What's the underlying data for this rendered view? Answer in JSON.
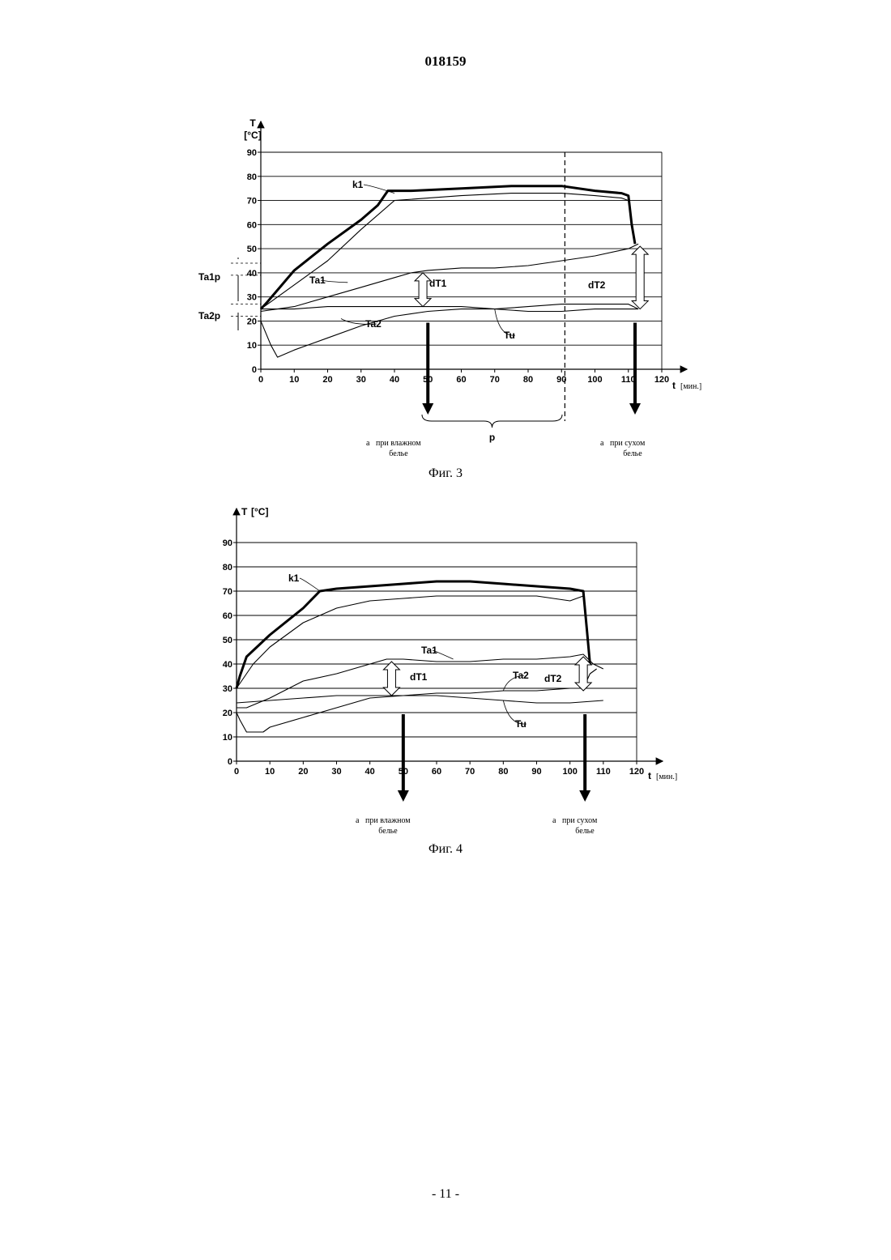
{
  "page": {
    "number": "018159",
    "footer": "- 11 -"
  },
  "chart_data": [
    {
      "type": "line",
      "caption": "Фиг. 3",
      "ylabel_symbol": "T",
      "ylabel_unit": "[°C]",
      "xlabel_symbol": "t",
      "xlabel_unit": "[мин.]",
      "xlim": [
        0,
        120
      ],
      "ylim": [
        0,
        90
      ],
      "x_ticks": [
        0,
        10,
        20,
        30,
        40,
        50,
        60,
        70,
        80,
        90,
        100,
        110,
        120
      ],
      "y_ticks": [
        0,
        10,
        20,
        30,
        40,
        50,
        60,
        70,
        80,
        90
      ],
      "grid": "horizontal",
      "series": [
        {
          "name": "k1",
          "style": "thick",
          "x": [
            0,
            2,
            10,
            20,
            30,
            35,
            38,
            45,
            60,
            75,
            90,
            100,
            108,
            110,
            111,
            112
          ],
          "y": [
            25,
            28,
            41,
            52,
            62,
            68,
            74,
            74,
            75,
            76,
            76,
            74,
            73,
            72,
            60,
            52
          ]
        },
        {
          "name": "",
          "style": "thin",
          "x": [
            0,
            10,
            20,
            30,
            40,
            50,
            60,
            75,
            90,
            100,
            108,
            110,
            111
          ],
          "y": [
            25,
            35,
            45,
            58,
            70,
            71,
            72,
            73,
            73,
            72,
            71,
            70,
            60
          ]
        },
        {
          "name": "Ta1",
          "style": "thin",
          "x": [
            0,
            10,
            20,
            30,
            40,
            45,
            50,
            60,
            70,
            80,
            90,
            100,
            110,
            113
          ],
          "y": [
            24,
            26,
            30,
            34,
            38,
            40,
            41,
            42,
            42,
            43,
            45,
            47,
            50,
            52
          ]
        },
        {
          "name": "Ta2",
          "style": "thin",
          "x": [
            0,
            3,
            5,
            10,
            20,
            30,
            40,
            50,
            60,
            70,
            80,
            90,
            100,
            110,
            113
          ],
          "y": [
            20,
            10,
            5,
            8,
            13,
            18,
            22,
            24,
            25,
            25,
            26,
            27,
            27,
            27,
            25
          ]
        },
        {
          "name": "Tu",
          "style": "thin",
          "x": [
            0,
            10,
            20,
            30,
            40,
            50,
            60,
            70,
            80,
            90,
            100,
            110,
            113
          ],
          "y": [
            25,
            25,
            26,
            26,
            26,
            26,
            26,
            25,
            24,
            24,
            25,
            25,
            25
          ]
        }
      ],
      "vertical_line": {
        "x": 91,
        "style": "dashed"
      },
      "arrows_down": [
        {
          "x": 50
        },
        {
          "x": 112
        }
      ],
      "double_arrows": [
        {
          "label": "dT1",
          "x": 48.5,
          "y1": 26,
          "y2": 40
        },
        {
          "label": "dT2",
          "x": 113.5,
          "y1": 25,
          "y2": 51
        }
      ],
      "left_markers": [
        "Ta1p",
        "Ta2p"
      ],
      "brace_label": "p",
      "annotations": [
        {
          "id": "wet",
          "prefix": "a",
          "line1": "при влажном",
          "line2": "белье"
        },
        {
          "id": "dry",
          "prefix": "a",
          "line1": "при сухом",
          "line2": "белье"
        }
      ]
    },
    {
      "type": "line",
      "caption": "Фиг. 4",
      "ylabel_symbol": "T",
      "ylabel_unit": "[°C]",
      "xlabel_symbol": "t",
      "xlabel_unit": "[мин.]",
      "xlim": [
        0,
        120
      ],
      "ylim": [
        0,
        90
      ],
      "x_ticks": [
        0,
        10,
        20,
        30,
        40,
        50,
        60,
        70,
        80,
        90,
        100,
        110,
        120
      ],
      "y_ticks": [
        0,
        10,
        20,
        30,
        40,
        50,
        60,
        70,
        80,
        90
      ],
      "grid": "horizontal",
      "series": [
        {
          "name": "k1",
          "style": "thick",
          "x": [
            0,
            1,
            3,
            10,
            20,
            25,
            30,
            40,
            50,
            60,
            70,
            80,
            90,
            100,
            104,
            105,
            106
          ],
          "y": [
            30,
            35,
            43,
            52,
            63,
            70,
            71,
            72,
            73,
            74,
            74,
            73,
            72,
            71,
            70,
            55,
            40
          ]
        },
        {
          "name": "",
          "style": "thin",
          "x": [
            0,
            5,
            10,
            20,
            30,
            40,
            50,
            60,
            70,
            80,
            90,
            100,
            104,
            105
          ],
          "y": [
            30,
            40,
            47,
            57,
            63,
            66,
            67,
            68,
            68,
            68,
            68,
            66,
            68,
            55
          ]
        },
        {
          "name": "Ta1",
          "style": "thin",
          "x": [
            0,
            3,
            10,
            20,
            30,
            40,
            45,
            50,
            60,
            70,
            80,
            90,
            100,
            104,
            107,
            110
          ],
          "y": [
            22,
            22,
            26,
            33,
            36,
            40,
            42,
            42,
            41,
            41,
            42,
            42,
            43,
            44,
            40,
            38
          ]
        },
        {
          "name": "Ta2",
          "style": "thin",
          "x": [
            0,
            1,
            3,
            8,
            10,
            20,
            30,
            40,
            50,
            60,
            70,
            80,
            90,
            100,
            104,
            106,
            108
          ],
          "y": [
            20,
            17,
            12,
            12,
            14,
            18,
            22,
            26,
            27,
            28,
            28,
            29,
            29,
            30,
            30,
            36,
            38
          ]
        },
        {
          "name": "Tu",
          "style": "thin",
          "x": [
            0,
            10,
            20,
            30,
            40,
            50,
            60,
            70,
            80,
            90,
            100,
            110
          ],
          "y": [
            24,
            25,
            26,
            27,
            27,
            27,
            27,
            26,
            25,
            24,
            24,
            25
          ]
        }
      ],
      "arrows_down": [
        {
          "x": 50
        },
        {
          "x": 104.5
        }
      ],
      "double_arrows": [
        {
          "label": "dT1",
          "x": 46.5,
          "y1": 27,
          "y2": 41
        },
        {
          "label": "dT2",
          "x": 104,
          "y1": 29,
          "y2": 43
        }
      ],
      "annotations": [
        {
          "id": "wet",
          "prefix": "a",
          "line1": "при влажном",
          "line2": "белье"
        },
        {
          "id": "dry",
          "prefix": "a",
          "line1": "при сухом",
          "line2": "белье"
        }
      ]
    }
  ]
}
